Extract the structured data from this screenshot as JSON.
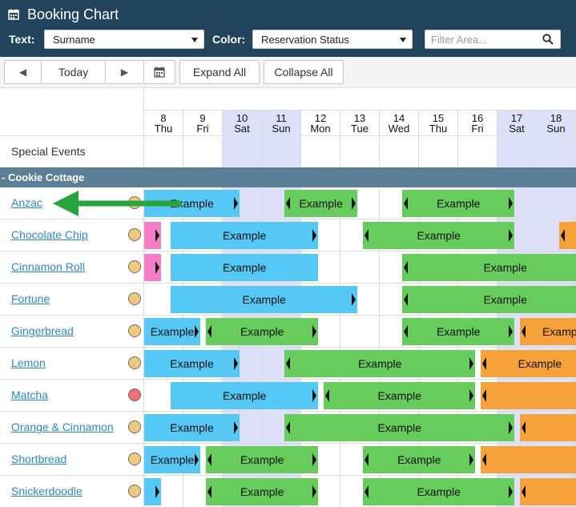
{
  "header": {
    "title": "Booking Chart",
    "text_label": "Text:",
    "text_select": "Surname",
    "color_label": "Color:",
    "color_select": "Reservation Status",
    "filter_placeholder": "Filter Area..."
  },
  "toolbar": {
    "prev_glyph": "◀",
    "today_label": "Today",
    "next_glyph": "▶",
    "expand_label": "Expand All",
    "collapse_label": "Collapse All"
  },
  "days": [
    {
      "num": "8",
      "dow": "Thu",
      "weekend": false
    },
    {
      "num": "9",
      "dow": "Fri",
      "weekend": false
    },
    {
      "num": "10",
      "dow": "Sat",
      "weekend": true
    },
    {
      "num": "11",
      "dow": "Sun",
      "weekend": true
    },
    {
      "num": "12",
      "dow": "Mon",
      "weekend": false
    },
    {
      "num": "13",
      "dow": "Tue",
      "weekend": false
    },
    {
      "num": "14",
      "dow": "Wed",
      "weekend": false
    },
    {
      "num": "15",
      "dow": "Thu",
      "weekend": false
    },
    {
      "num": "16",
      "dow": "Fri",
      "weekend": false
    },
    {
      "num": "17",
      "dow": "Sat",
      "weekend": true
    },
    {
      "num": "18",
      "dow": "Sun",
      "weekend": true
    }
  ],
  "special_events_label": "Special Events",
  "group_label": "- Cookie Cottage",
  "colors": {
    "confirmed": "#55c8f6",
    "green": "#66cc5c",
    "orange": "#f7a13a",
    "pink": "#f57fc7",
    "dot_yellow": "#f2c97a",
    "dot_red": "#ef6f74",
    "pointer": "#29a33b"
  },
  "rooms": [
    {
      "name": "Anzac",
      "dot": "#f2c97a",
      "bookings": [
        {
          "label": "Example",
          "color": "#55c8f6",
          "start": -0.3,
          "end": 2.45,
          "arrowL": false,
          "arrowR": true
        },
        {
          "label": "Example",
          "color": "#66cc5c",
          "start": 3.6,
          "end": 5.45,
          "arrowL": true,
          "arrowR": true
        },
        {
          "label": "Example",
          "color": "#66cc5c",
          "start": 6.6,
          "end": 9.45,
          "arrowL": true,
          "arrowR": true
        }
      ]
    },
    {
      "name": "Chocolate Chip",
      "dot": "#f2c97a",
      "bookings": [
        {
          "label": "",
          "color": "#f57fc7",
          "start": -0.05,
          "end": 0.45,
          "arrowL": false,
          "arrowR": true
        },
        {
          "label": "Example",
          "color": "#55c8f6",
          "start": 0.7,
          "end": 4.45,
          "arrowL": false,
          "arrowR": true
        },
        {
          "label": "Example",
          "color": "#66cc5c",
          "start": 5.6,
          "end": 9.45,
          "arrowL": true,
          "arrowR": true
        },
        {
          "label": "",
          "color": "#f7a13a",
          "start": 10.6,
          "end": 11.4,
          "arrowL": true,
          "arrowR": false
        }
      ]
    },
    {
      "name": "Cinnamon Roll",
      "dot": "#f2c97a",
      "bookings": [
        {
          "label": "",
          "color": "#f57fc7",
          "start": -0.05,
          "end": 0.45,
          "arrowL": false,
          "arrowR": true
        },
        {
          "label": "Example",
          "color": "#55c8f6",
          "start": 0.7,
          "end": 4.45,
          "arrowL": false,
          "arrowR": false
        },
        {
          "label": "Example",
          "color": "#66cc5c",
          "start": 6.6,
          "end": 12.5,
          "arrowL": true,
          "arrowR": false
        }
      ]
    },
    {
      "name": "Fortune",
      "dot": "#f2c97a",
      "bookings": [
        {
          "label": "Example",
          "color": "#55c8f6",
          "start": 0.7,
          "end": 5.45,
          "arrowL": false,
          "arrowR": true
        },
        {
          "label": "Example",
          "color": "#66cc5c",
          "start": 6.6,
          "end": 12.5,
          "arrowL": true,
          "arrowR": false
        }
      ]
    },
    {
      "name": "Gingerbread",
      "dot": "#f2c97a",
      "bookings": [
        {
          "label": "Example",
          "color": "#55c8f6",
          "start": -0.05,
          "end": 1.45,
          "arrowL": false,
          "arrowR": true
        },
        {
          "label": "Example",
          "color": "#66cc5c",
          "start": 1.6,
          "end": 4.45,
          "arrowL": true,
          "arrowR": true
        },
        {
          "label": "Example",
          "color": "#66cc5c",
          "start": 6.6,
          "end": 9.45,
          "arrowL": true,
          "arrowR": true
        },
        {
          "label": "Example",
          "color": "#f7a13a",
          "start": 9.6,
          "end": 12.5,
          "arrowL": true,
          "arrowR": false
        }
      ]
    },
    {
      "name": "Lemon",
      "dot": "#f2c97a",
      "bookings": [
        {
          "label": "Example",
          "color": "#55c8f6",
          "start": -0.05,
          "end": 2.45,
          "arrowL": false,
          "arrowR": true
        },
        {
          "label": "Example",
          "color": "#66cc5c",
          "start": 3.6,
          "end": 8.45,
          "arrowL": true,
          "arrowR": true
        },
        {
          "label": "Example",
          "color": "#f7a13a",
          "start": 8.6,
          "end": 11.6,
          "arrowL": true,
          "arrowR": false
        }
      ]
    },
    {
      "name": "Matcha",
      "dot": "#ef6f74",
      "bookings": [
        {
          "label": "Example",
          "color": "#55c8f6",
          "start": 0.7,
          "end": 4.45,
          "arrowL": false,
          "arrowR": true
        },
        {
          "label": "Example",
          "color": "#66cc5c",
          "start": 4.6,
          "end": 8.45,
          "arrowL": true,
          "arrowR": true
        },
        {
          "label": "",
          "color": "#f7a13a",
          "start": 8.6,
          "end": 11.6,
          "arrowL": true,
          "arrowR": false
        }
      ]
    },
    {
      "name": "Orange & Cinnamon",
      "dot": "#f2c97a",
      "bookings": [
        {
          "label": "Example",
          "color": "#55c8f6",
          "start": -0.05,
          "end": 2.45,
          "arrowL": false,
          "arrowR": true
        },
        {
          "label": "Example",
          "color": "#66cc5c",
          "start": 3.6,
          "end": 9.45,
          "arrowL": true,
          "arrowR": true
        },
        {
          "label": "",
          "color": "#f7a13a",
          "start": 9.6,
          "end": 11.6,
          "arrowL": true,
          "arrowR": false
        }
      ]
    },
    {
      "name": "Shortbread",
      "dot": "#f2c97a",
      "bookings": [
        {
          "label": "Example",
          "color": "#55c8f6",
          "start": -0.05,
          "end": 1.45,
          "arrowL": false,
          "arrowR": true
        },
        {
          "label": "Example",
          "color": "#66cc5c",
          "start": 1.6,
          "end": 4.45,
          "arrowL": true,
          "arrowR": true
        },
        {
          "label": "Example",
          "color": "#66cc5c",
          "start": 5.6,
          "end": 8.45,
          "arrowL": true,
          "arrowR": true
        },
        {
          "label": "",
          "color": "#f7a13a",
          "start": 8.6,
          "end": 11.6,
          "arrowL": true,
          "arrowR": false
        }
      ]
    },
    {
      "name": "Snickerdoodle",
      "dot": "#f2c97a",
      "bookings": [
        {
          "label": "",
          "color": "#55c8f6",
          "start": -0.05,
          "end": 0.45,
          "arrowL": false,
          "arrowR": true
        },
        {
          "label": "Example",
          "color": "#66cc5c",
          "start": 1.6,
          "end": 4.45,
          "arrowL": true,
          "arrowR": true
        },
        {
          "label": "Example",
          "color": "#66cc5c",
          "start": 5.6,
          "end": 9.45,
          "arrowL": true,
          "arrowR": true
        },
        {
          "label": "",
          "color": "#f7a13a",
          "start": 9.6,
          "end": 11.6,
          "arrowL": true,
          "arrowR": false
        }
      ]
    }
  ]
}
